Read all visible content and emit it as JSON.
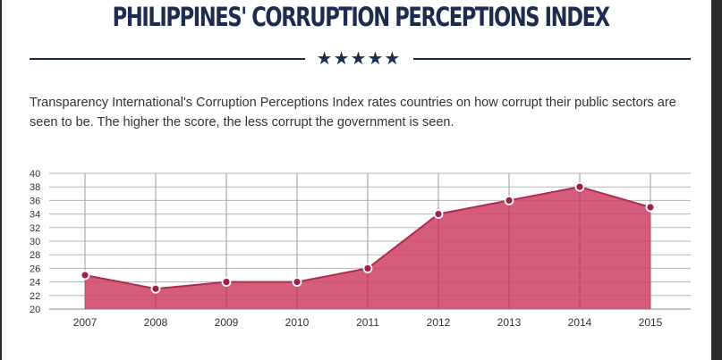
{
  "header": {
    "title": "PHILIPPINES' CORRUPTION PERCEPTIONS INDEX",
    "stars": "★★★★★"
  },
  "description": "Transparency International's Corruption Perceptions Index rates countries on how corrupt their public sectors are seen to be. The higher the score, the less corrupt the government is seen.",
  "chart_data": {
    "type": "area",
    "categories": [
      "2007",
      "2008",
      "2009",
      "2010",
      "2011",
      "2012",
      "2013",
      "2014",
      "2015"
    ],
    "values": [
      25,
      23,
      24,
      24,
      26,
      34,
      36,
      38,
      35
    ],
    "ylim": [
      20,
      40
    ],
    "yticks": [
      20,
      22,
      24,
      26,
      28,
      30,
      32,
      34,
      36,
      38,
      40
    ],
    "grid": true,
    "colors": {
      "fill": "#d0466a",
      "line": "#b02a4f",
      "marker": "#a31d44",
      "grid": "#b5b5b5"
    }
  }
}
